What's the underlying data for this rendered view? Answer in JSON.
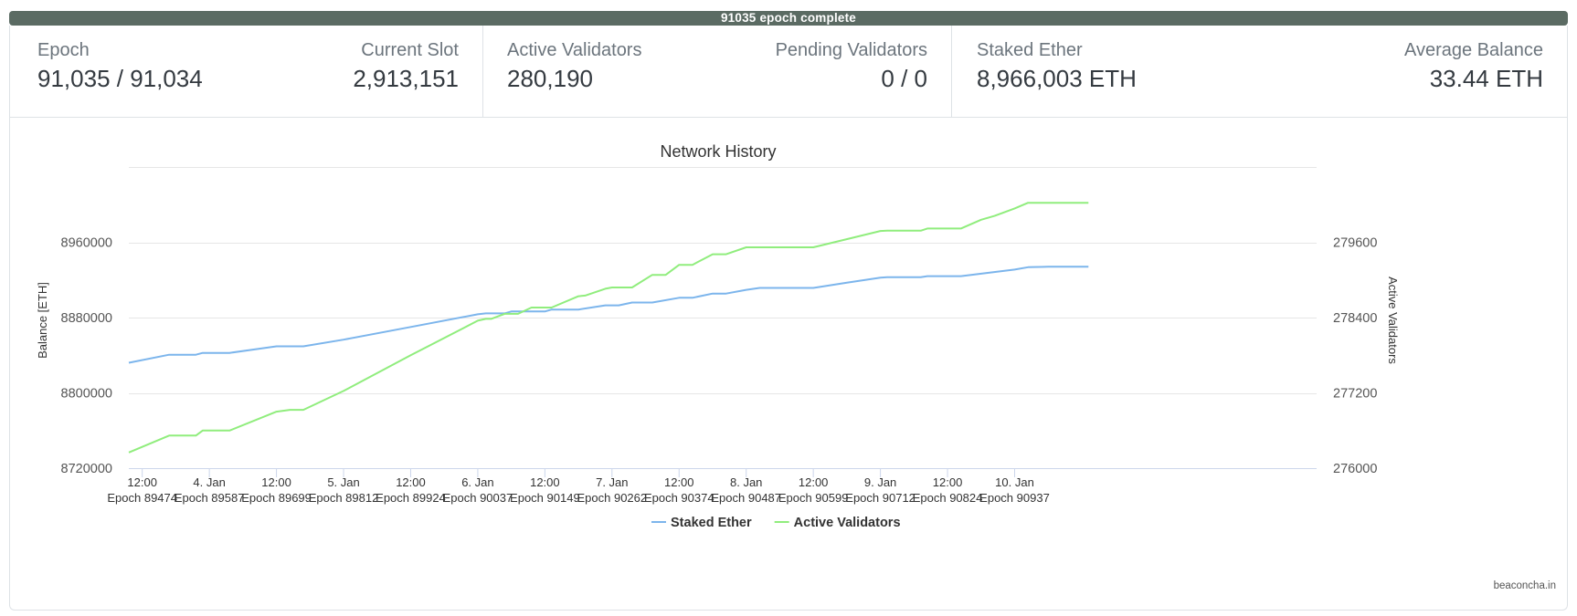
{
  "progress": {
    "text": "91035 epoch complete",
    "fraction": 1.0
  },
  "stats": {
    "epoch": {
      "label": "Epoch",
      "value": "91,035 / 91,034"
    },
    "current_slot": {
      "label": "Current Slot",
      "value": "2,913,151"
    },
    "active_validators": {
      "label": "Active Validators",
      "value": "280,190"
    },
    "pending_validators": {
      "label": "Pending Validators",
      "value": "0 / 0"
    },
    "staked_ether": {
      "label": "Staked Ether",
      "value": "8,966,003 ETH"
    },
    "average_balance": {
      "label": "Average Balance",
      "value": "33.44 ETH"
    }
  },
  "credit": "beaconcha.in",
  "chart_data": {
    "type": "line",
    "title": "Network History",
    "ylabel_left": "Balance [ETH]",
    "ylabel_right": "Active Validators",
    "ylim_left": [
      8720000,
      9040000
    ],
    "ylim_right": [
      276000,
      280800
    ],
    "yticks_left": [
      8720000,
      8800000,
      8880000,
      8960000
    ],
    "yticks_right": [
      276000,
      277200,
      278400,
      279600
    ],
    "xlim": [
      0.12,
      8.97
    ],
    "xticks": [
      {
        "x": 0.22,
        "line1": "12:00",
        "line2": "Epoch 89474"
      },
      {
        "x": 0.72,
        "line1": "4. Jan",
        "line2": "Epoch 89587"
      },
      {
        "x": 1.22,
        "line1": "12:00",
        "line2": "Epoch 89699"
      },
      {
        "x": 1.72,
        "line1": "5. Jan",
        "line2": "Epoch 89812"
      },
      {
        "x": 2.22,
        "line1": "12:00",
        "line2": "Epoch 89924"
      },
      {
        "x": 2.72,
        "line1": "6. Jan",
        "line2": "Epoch 90037"
      },
      {
        "x": 3.22,
        "line1": "12:00",
        "line2": "Epoch 90149"
      },
      {
        "x": 3.72,
        "line1": "7. Jan",
        "line2": "Epoch 90262"
      },
      {
        "x": 4.22,
        "line1": "12:00",
        "line2": "Epoch 90374"
      },
      {
        "x": 4.72,
        "line1": "8. Jan",
        "line2": "Epoch 90487"
      },
      {
        "x": 5.22,
        "line1": "12:00",
        "line2": "Epoch 90599"
      },
      {
        "x": 5.72,
        "line1": "9. Jan",
        "line2": "Epoch 90712"
      },
      {
        "x": 6.22,
        "line1": "12:00",
        "line2": "Epoch 90824"
      },
      {
        "x": 6.72,
        "line1": "10. Jan",
        "line2": "Epoch 90937"
      }
    ],
    "series": [
      {
        "name": "Staked Ether",
        "axis": "left",
        "color": "#7cb5ec",
        "points": [
          [
            0.12,
            8832000
          ],
          [
            0.42,
            8840500
          ],
          [
            0.62,
            8840500
          ],
          [
            0.67,
            8842500
          ],
          [
            0.87,
            8842500
          ],
          [
            1.22,
            8849500
          ],
          [
            1.42,
            8849500
          ],
          [
            1.72,
            8856500
          ],
          [
            2.22,
            8870000
          ],
          [
            2.72,
            8883500
          ],
          [
            2.78,
            8884500
          ],
          [
            2.92,
            8884500
          ],
          [
            2.97,
            8886500
          ],
          [
            3.22,
            8886500
          ],
          [
            3.27,
            8888500
          ],
          [
            3.47,
            8888500
          ],
          [
            3.67,
            8893000
          ],
          [
            3.77,
            8893000
          ],
          [
            3.87,
            8896000
          ],
          [
            4.02,
            8896000
          ],
          [
            4.22,
            8901000
          ],
          [
            4.32,
            8901000
          ],
          [
            4.47,
            8905500
          ],
          [
            4.57,
            8905500
          ],
          [
            4.72,
            8909500
          ],
          [
            4.82,
            8911500
          ],
          [
            5.22,
            8911500
          ],
          [
            5.47,
            8917000
          ],
          [
            5.72,
            8922500
          ],
          [
            5.77,
            8923000
          ],
          [
            6.02,
            8923000
          ],
          [
            6.07,
            8924000
          ],
          [
            6.32,
            8924000
          ],
          [
            6.72,
            8931000
          ],
          [
            6.82,
            8933500
          ],
          [
            6.97,
            8934000
          ],
          [
            7.27,
            8934000
          ]
        ]
      },
      {
        "name": "Active Validators",
        "axis": "right",
        "color": "#90ed7d",
        "points": [
          [
            0.12,
            276250
          ],
          [
            0.42,
            276520
          ],
          [
            0.62,
            276520
          ],
          [
            0.67,
            276600
          ],
          [
            0.87,
            276600
          ],
          [
            1.22,
            276900
          ],
          [
            1.32,
            276930
          ],
          [
            1.42,
            276930
          ],
          [
            1.72,
            277230
          ],
          [
            2.22,
            277800
          ],
          [
            2.72,
            278350
          ],
          [
            2.78,
            278380
          ],
          [
            2.82,
            278380
          ],
          [
            2.92,
            278460
          ],
          [
            3.02,
            278460
          ],
          [
            3.12,
            278560
          ],
          [
            3.27,
            278560
          ],
          [
            3.47,
            278740
          ],
          [
            3.52,
            278750
          ],
          [
            3.67,
            278860
          ],
          [
            3.72,
            278880
          ],
          [
            3.87,
            278880
          ],
          [
            4.02,
            279080
          ],
          [
            4.12,
            279080
          ],
          [
            4.22,
            279240
          ],
          [
            4.32,
            279240
          ],
          [
            4.47,
            279410
          ],
          [
            4.57,
            279410
          ],
          [
            4.72,
            279520
          ],
          [
            4.82,
            279520
          ],
          [
            5.22,
            279520
          ],
          [
            5.72,
            279780
          ],
          [
            5.77,
            279785
          ],
          [
            6.02,
            279785
          ],
          [
            6.07,
            279820
          ],
          [
            6.32,
            279820
          ],
          [
            6.47,
            279960
          ],
          [
            6.57,
            280020
          ],
          [
            6.72,
            280140
          ],
          [
            6.82,
            280230
          ],
          [
            7.27,
            280230
          ]
        ]
      }
    ],
    "legend": "bottom-center",
    "grid": true
  }
}
